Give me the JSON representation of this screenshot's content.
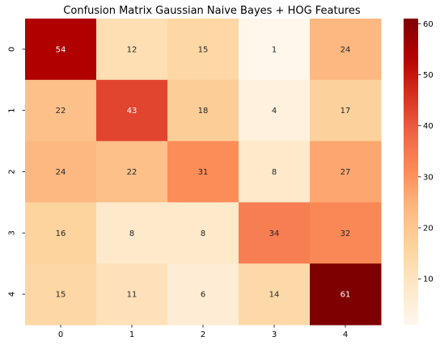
{
  "chart_data": {
    "type": "heatmap",
    "title": "Confusion Matrix Gaussian Naive Bayes + HOG Features",
    "x_categories": [
      "0",
      "1",
      "2",
      "3",
      "4"
    ],
    "y_categories": [
      "0",
      "1",
      "2",
      "3",
      "4"
    ],
    "values": [
      [
        54,
        12,
        15,
        1,
        24
      ],
      [
        22,
        43,
        18,
        4,
        17
      ],
      [
        24,
        22,
        31,
        8,
        27
      ],
      [
        16,
        8,
        8,
        34,
        32
      ],
      [
        15,
        11,
        6,
        14,
        61
      ]
    ],
    "colorscale": "OrRd",
    "colorbar": {
      "range": [
        1,
        61
      ],
      "ticks": [
        10,
        20,
        30,
        40,
        50,
        60
      ]
    }
  }
}
